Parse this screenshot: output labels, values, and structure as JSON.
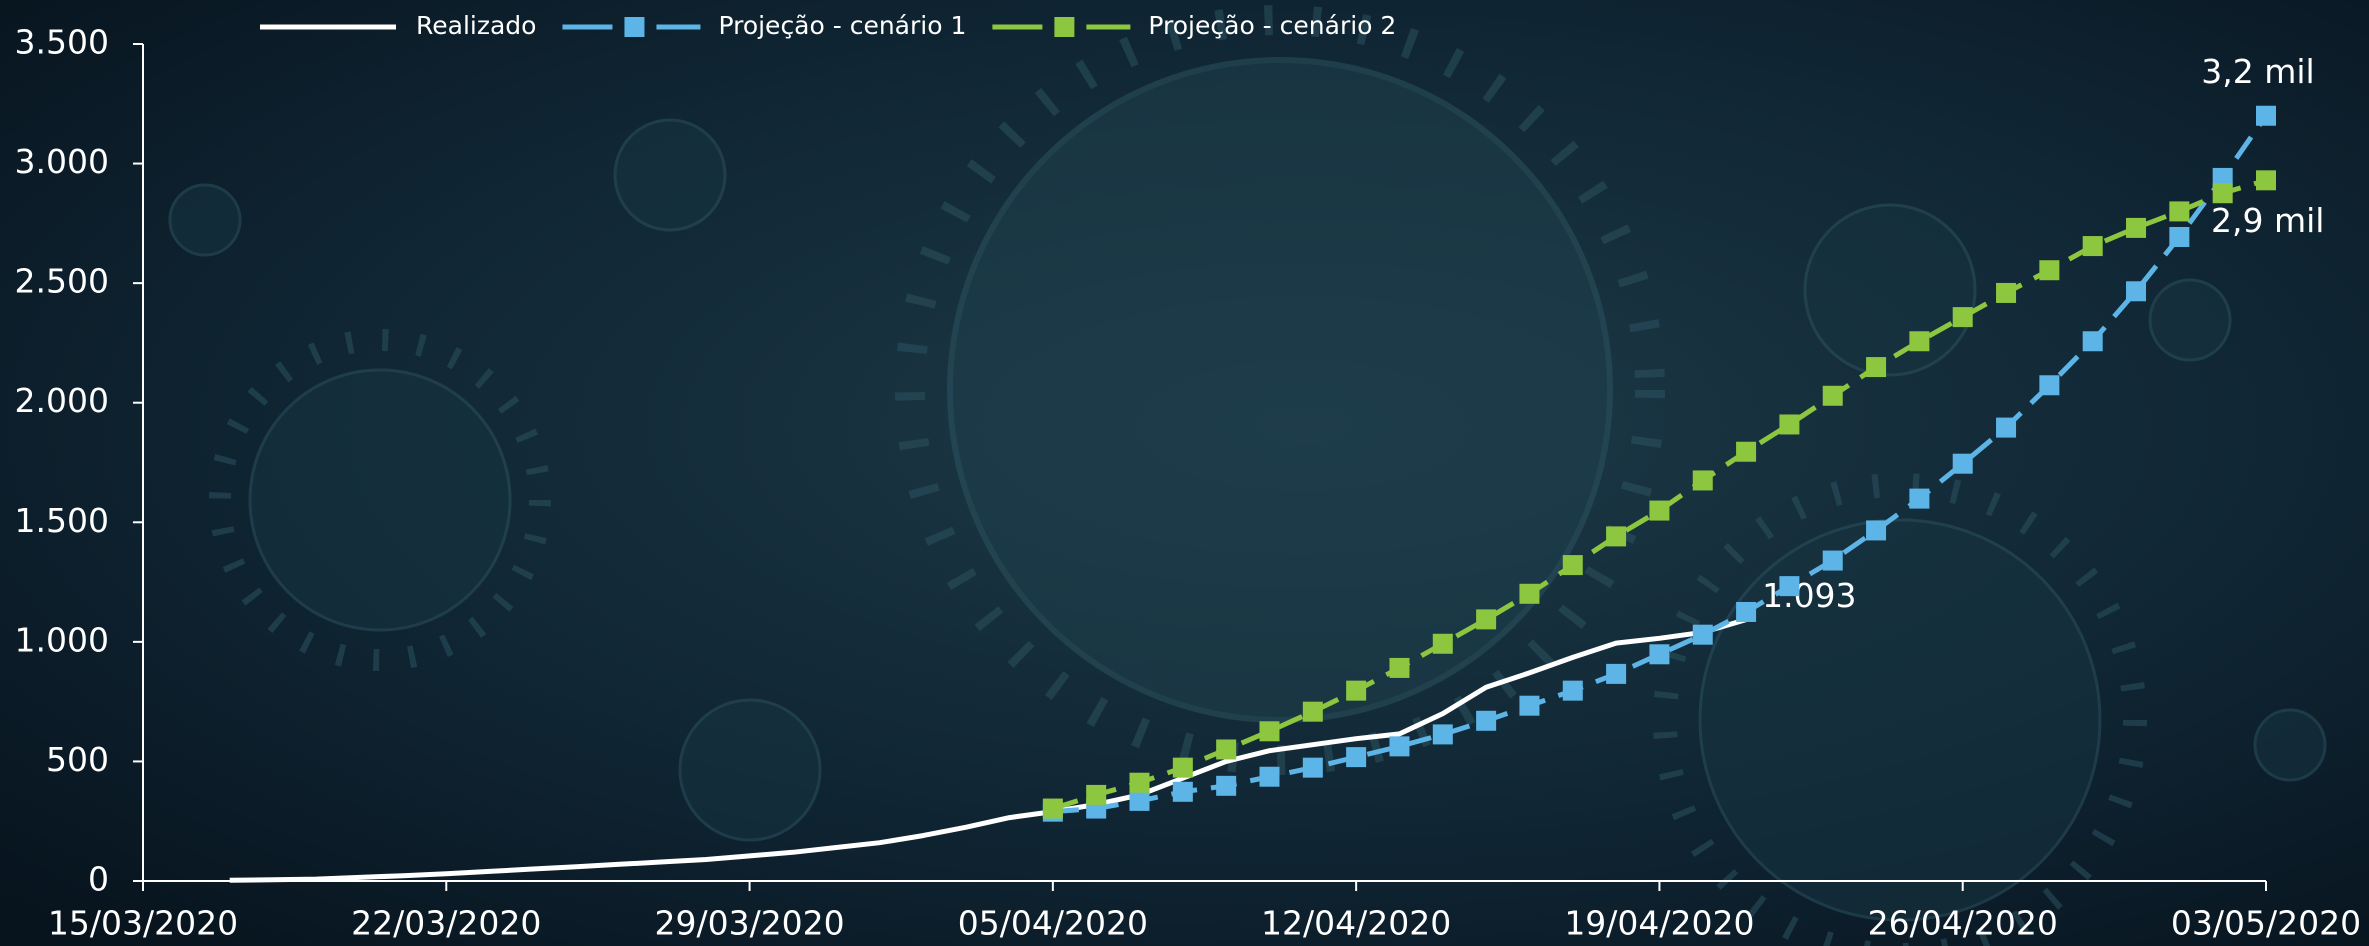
{
  "chart_data": {
    "type": "line",
    "categories": [
      "15/03/2020",
      null,
      null,
      null,
      null,
      null,
      null,
      "22/03/2020",
      null,
      null,
      null,
      null,
      null,
      null,
      "29/03/2020",
      null,
      null,
      null,
      null,
      null,
      null,
      "05/04/2020",
      null,
      null,
      null,
      null,
      null,
      null,
      "12/04/2020",
      null,
      null,
      null,
      null,
      null,
      null,
      "19/04/2020",
      null,
      null,
      null,
      null,
      null,
      null,
      "26/04/2020",
      null,
      null,
      null,
      null,
      null,
      null,
      "03/05/2020"
    ],
    "series": [
      {
        "name": "Realizado",
        "color": "#ffffff",
        "dashed": false,
        "markers": false,
        "values": [
          null,
          null,
          3,
          5,
          8,
          15,
          22,
          30,
          40,
          50,
          60,
          70,
          80,
          90,
          105,
          120,
          140,
          160,
          190,
          225,
          265,
          290,
          320,
          360,
          430,
          500,
          545,
          570,
          595,
          615,
          700,
          810,
          870,
          935,
          995,
          1015,
          1040,
          1093,
          null,
          null,
          null,
          null,
          null,
          null,
          null,
          null,
          null,
          null,
          null,
          null
        ],
        "value_labels": [
          null,
          null,
          null,
          null,
          null,
          null,
          null,
          null,
          null,
          null,
          null,
          null,
          null,
          null,
          null,
          null,
          null,
          null,
          null,
          null,
          null,
          null,
          null,
          null,
          null,
          null,
          null,
          null,
          null,
          null,
          null,
          null,
          null,
          null,
          null,
          null,
          null,
          "1.093",
          null,
          null,
          null,
          null,
          null,
          null,
          null,
          null,
          null,
          null,
          null,
          null
        ]
      },
      {
        "name": "Projeção - cenário 1",
        "color": "#5cb5e6",
        "dashed": true,
        "markers": true,
        "values": [
          null,
          null,
          null,
          null,
          null,
          null,
          null,
          null,
          null,
          null,
          null,
          null,
          null,
          null,
          null,
          null,
          null,
          null,
          null,
          null,
          null,
          290,
          303,
          335,
          373,
          398,
          436,
          474,
          518,
          563,
          613,
          670,
          733,
          796,
          866,
          948,
          1030,
          1125,
          1233,
          1340,
          1466,
          1599,
          1745,
          1896,
          2073,
          2257,
          2466,
          2693,
          2940,
          3200
        ],
        "value_labels": [
          null,
          null,
          null,
          null,
          null,
          null,
          null,
          null,
          null,
          null,
          null,
          null,
          null,
          null,
          null,
          null,
          null,
          null,
          null,
          null,
          null,
          null,
          null,
          null,
          null,
          null,
          null,
          null,
          null,
          null,
          null,
          null,
          null,
          null,
          null,
          null,
          null,
          null,
          null,
          null,
          null,
          null,
          null,
          null,
          null,
          null,
          null,
          null,
          null,
          "3,2 mil"
        ]
      },
      {
        "name": "Projeção - cenário 2",
        "color": "#8dc63f",
        "dashed": true,
        "markers": true,
        "values": [
          null,
          null,
          null,
          null,
          null,
          null,
          null,
          null,
          null,
          null,
          null,
          null,
          null,
          null,
          null,
          null,
          null,
          null,
          null,
          null,
          null,
          303,
          360,
          411,
          474,
          550,
          626,
          708,
          796,
          891,
          992,
          1094,
          1201,
          1321,
          1441,
          1549,
          1675,
          1795,
          1909,
          2029,
          2149,
          2257,
          2358,
          2459,
          2554,
          2655,
          2731,
          2800,
          2876,
          2930
        ],
        "value_labels": [
          null,
          null,
          null,
          null,
          null,
          null,
          null,
          null,
          null,
          null,
          null,
          null,
          null,
          null,
          null,
          null,
          null,
          null,
          null,
          null,
          null,
          null,
          null,
          null,
          null,
          null,
          null,
          null,
          null,
          null,
          null,
          null,
          null,
          null,
          null,
          null,
          null,
          null,
          null,
          null,
          null,
          null,
          null,
          null,
          null,
          null,
          null,
          null,
          null,
          "2,9 mil"
        ]
      }
    ],
    "ylim": [
      0,
      3500
    ],
    "yticks": [
      0,
      500,
      {
        "value": 1000,
        "label": "1.000"
      },
      {
        "value": 1500,
        "label": "1.500"
      },
      {
        "value": 2000,
        "label": "2.000"
      },
      {
        "value": 2500,
        "label": "2.500"
      },
      {
        "value": 3000,
        "label": "3.000"
      },
      {
        "value": 3500,
        "label": "3.500"
      }
    ],
    "grid": false,
    "legend": "top"
  }
}
